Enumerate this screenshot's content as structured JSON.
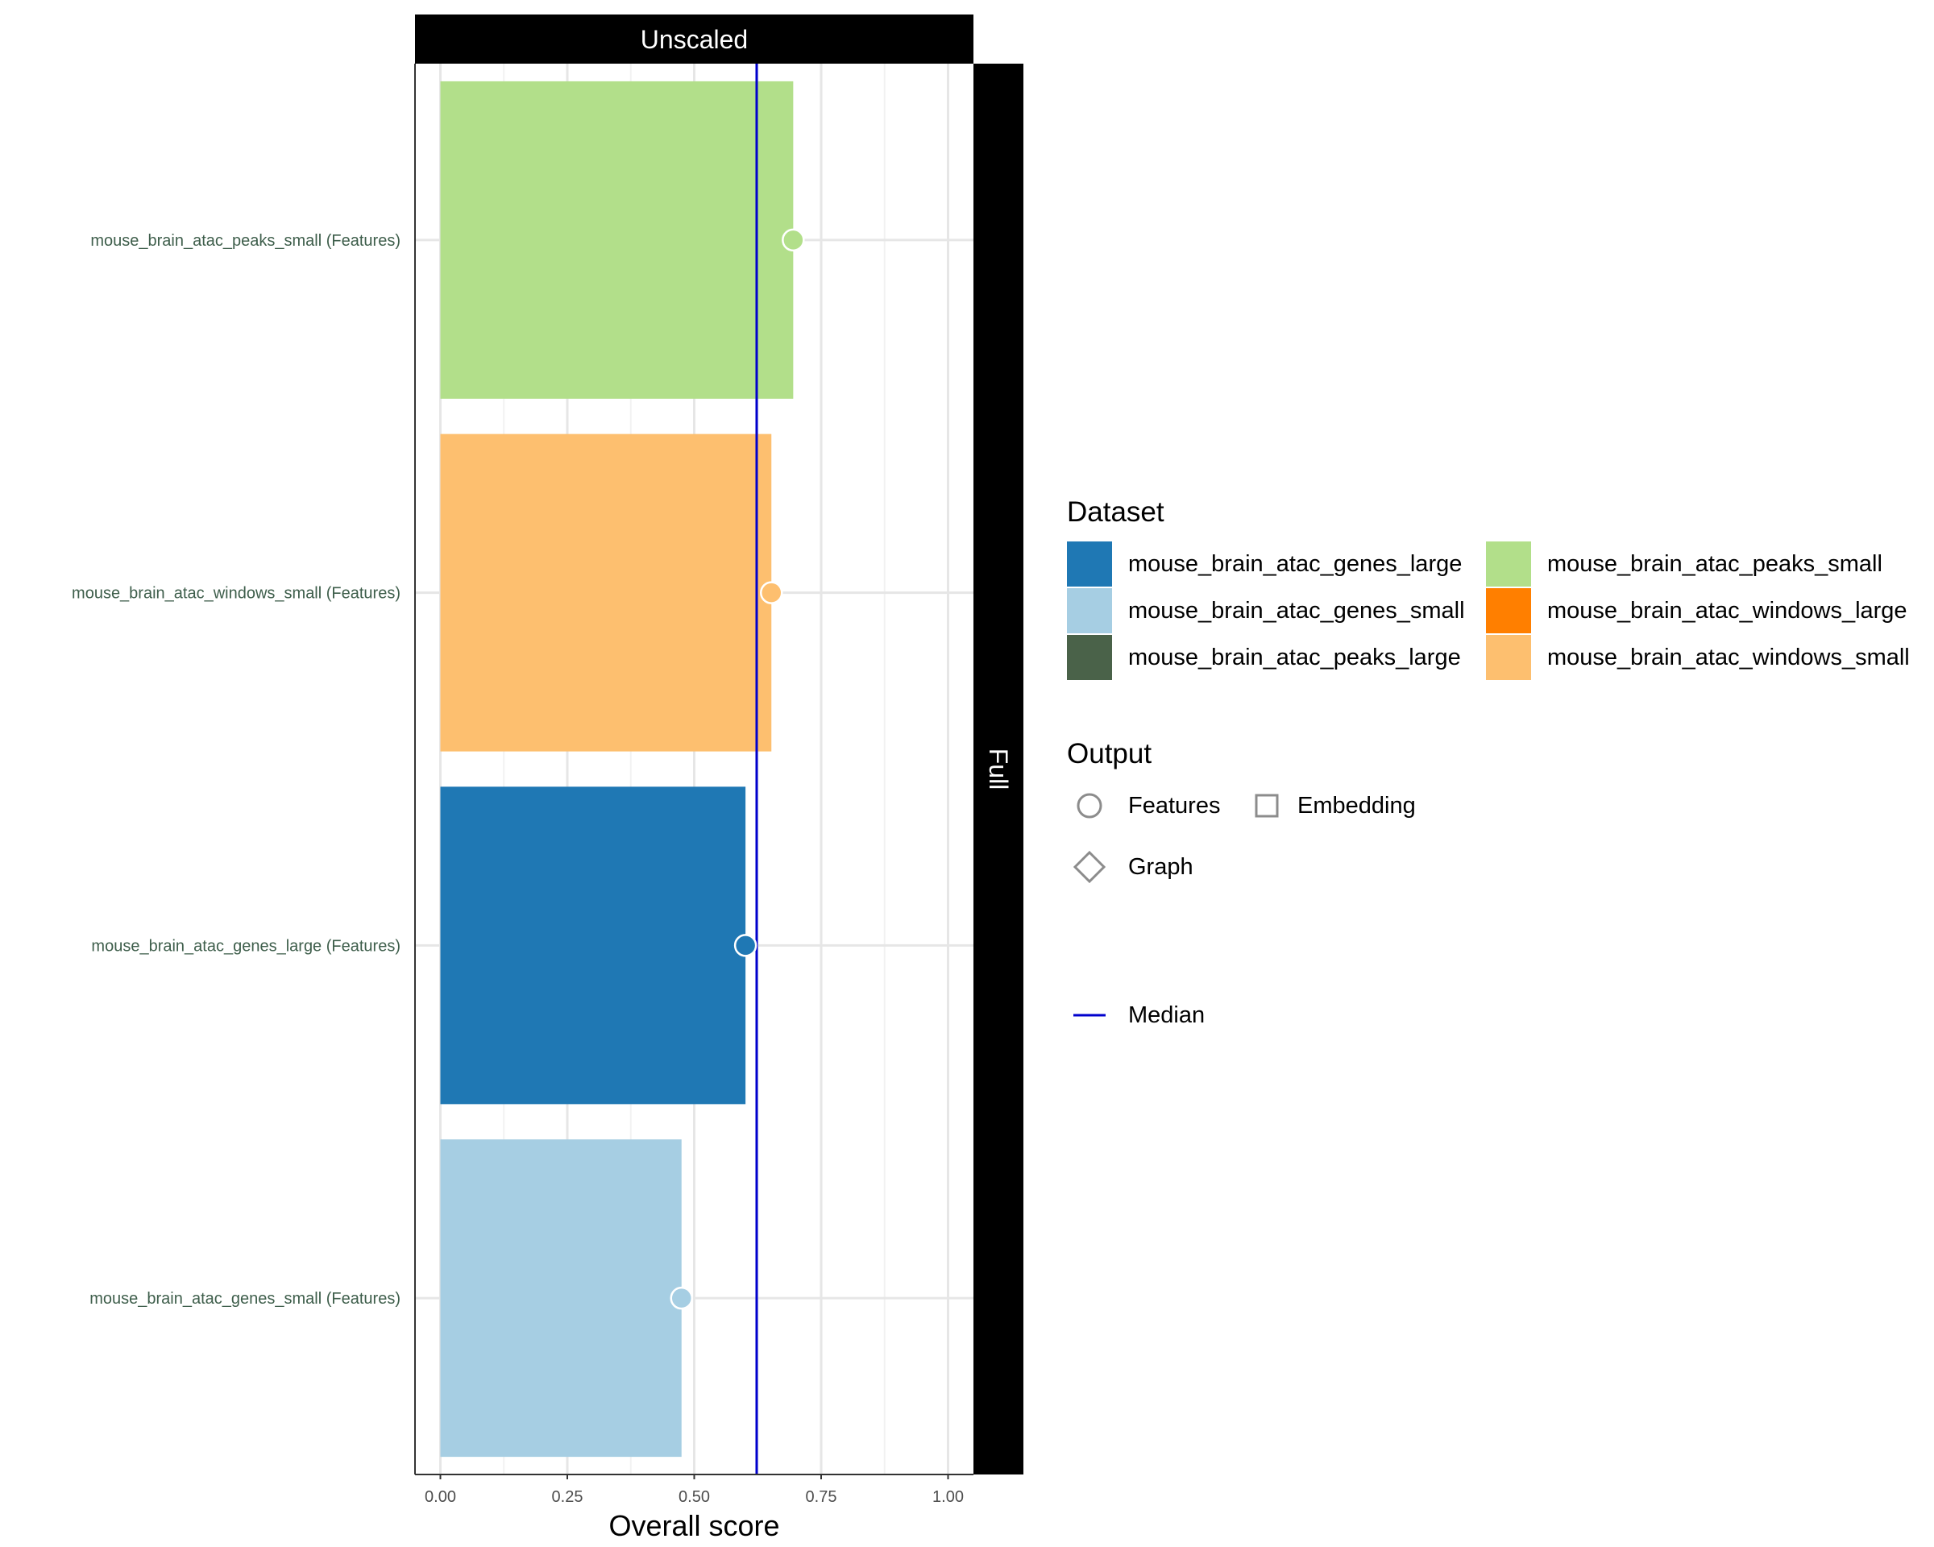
{
  "chart_data": {
    "type": "bar",
    "orientation": "horizontal",
    "facet_column": "Unscaled",
    "facet_row": "Full",
    "categories": [
      "mouse_brain_atac_peaks_small (Features)",
      "mouse_brain_atac_windows_small (Features)",
      "mouse_brain_atac_genes_large (Features)",
      "mouse_brain_atac_genes_small (Features)"
    ],
    "values": [
      0.695,
      0.652,
      0.601,
      0.475
    ],
    "bar_colors": [
      "#b2df8a",
      "#fdbf6f",
      "#1f78b4",
      "#a6cee3"
    ],
    "point_shape": [
      "circle",
      "circle",
      "circle",
      "circle"
    ],
    "median": 0.623,
    "median_color": "#0000cd",
    "xlabel": "Overall score",
    "xlim": [
      -0.05,
      1.05
    ],
    "xticks": [
      "0.00",
      "0.25",
      "0.50",
      "0.75",
      "1.00"
    ],
    "xtick_values": [
      0,
      0.25,
      0.5,
      0.75,
      1.0
    ],
    "grid": true
  },
  "legend": {
    "dataset_title": "Dataset",
    "datasets": [
      {
        "label": "mouse_brain_atac_genes_large",
        "color": "#1f78b4"
      },
      {
        "label": "mouse_brain_atac_genes_small",
        "color": "#a6cee3"
      },
      {
        "label": "mouse_brain_atac_peaks_large",
        "color": "#4a6249"
      },
      {
        "label": "mouse_brain_atac_peaks_small",
        "color": "#b2df8a"
      },
      {
        "label": "mouse_brain_atac_windows_large",
        "color": "#ff7f00"
      },
      {
        "label": "mouse_brain_atac_windows_small",
        "color": "#fdbf6f"
      }
    ],
    "output_title": "Output",
    "outputs": [
      {
        "label": "Features",
        "shape": "circle"
      },
      {
        "label": "Embedding",
        "shape": "square"
      },
      {
        "label": "Graph",
        "shape": "diamond"
      }
    ],
    "median_label": "Median"
  }
}
